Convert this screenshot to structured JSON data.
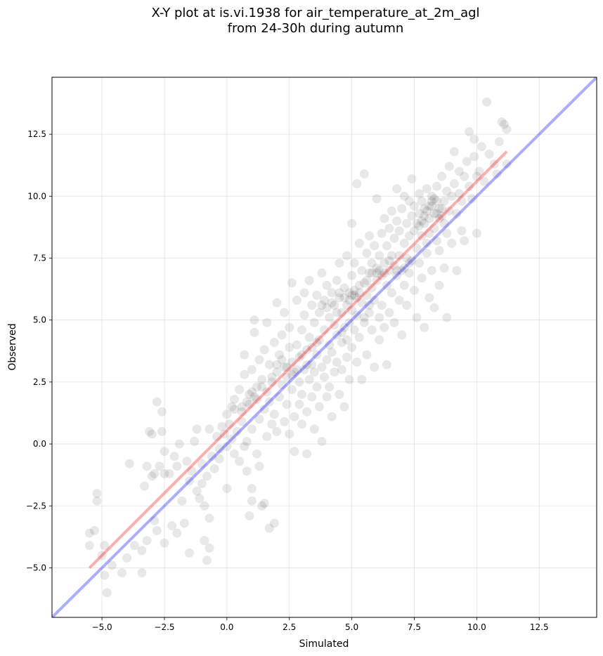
{
  "chart_data": {
    "type": "scatter",
    "title_line1": "X-Y plot at is.vi.1938 for air_temperature_at_2m_agl",
    "title_line2": "from 24-30h during autumn",
    "xlabel": "Simulated",
    "ylabel": "Observed",
    "xlim": [
      -7.0,
      14.8
    ],
    "ylim": [
      -7.0,
      14.8
    ],
    "x_ticks": [
      -5.0,
      -2.5,
      0.0,
      2.5,
      5.0,
      7.5,
      10.0,
      12.5
    ],
    "y_ticks": [
      -5.0,
      -2.5,
      0.0,
      2.5,
      5.0,
      7.5,
      10.0,
      12.5
    ],
    "x_tick_labels": [
      "−5.0",
      "−2.5",
      "0.0",
      "2.5",
      "5.0",
      "7.5",
      "10.0",
      "12.5"
    ],
    "y_tick_labels": [
      "−5.0",
      "−2.5",
      "0.0",
      "2.5",
      "5.0",
      "7.5",
      "10.0",
      "12.5"
    ],
    "grid": true,
    "colors": {
      "points": "#000000",
      "fit_line": "#ff0000",
      "identity_line": "#0000ff"
    },
    "fit_line": {
      "x": [
        -5.5,
        11.2
      ],
      "y": [
        -5.0,
        11.8
      ]
    },
    "identity_line": {
      "x": [
        -7.0,
        14.8
      ],
      "y": [
        -7.0,
        14.8
      ]
    },
    "points": [
      [
        -5.5,
        -3.6
      ],
      [
        -5.5,
        -4.1
      ],
      [
        -5.3,
        -3.5
      ],
      [
        -5.2,
        -2.0
      ],
      [
        -5.2,
        -2.3
      ],
      [
        -5.0,
        -4.5
      ],
      [
        -4.9,
        -5.3
      ],
      [
        -4.9,
        -4.1
      ],
      [
        -4.8,
        -6.0
      ],
      [
        -4.6,
        -4.9
      ],
      [
        -4.2,
        -5.2
      ],
      [
        -4.0,
        -4.6
      ],
      [
        -3.9,
        -0.8
      ],
      [
        -3.7,
        -4.1
      ],
      [
        -3.4,
        -5.2
      ],
      [
        -3.4,
        -4.3
      ],
      [
        -3.3,
        -1.7
      ],
      [
        -3.2,
        -0.9
      ],
      [
        -3.2,
        -3.9
      ],
      [
        -3.1,
        0.5
      ],
      [
        -3.0,
        -1.3
      ],
      [
        -3.0,
        0.4
      ],
      [
        -2.9,
        -1.2
      ],
      [
        -2.9,
        -3.1
      ],
      [
        -2.8,
        -3.5
      ],
      [
        -2.8,
        1.7
      ],
      [
        -2.7,
        -0.9
      ],
      [
        -2.6,
        0.5
      ],
      [
        -2.6,
        1.3
      ],
      [
        -2.5,
        -1.2
      ],
      [
        -2.5,
        -0.3
      ],
      [
        -2.5,
        -4.0
      ],
      [
        -2.3,
        -1.2
      ],
      [
        -2.2,
        -3.3
      ],
      [
        -2.1,
        -0.5
      ],
      [
        -2.0,
        -0.9
      ],
      [
        -2.0,
        -3.6
      ],
      [
        -1.9,
        0.0
      ],
      [
        -1.8,
        -2.3
      ],
      [
        -1.7,
        -3.2
      ],
      [
        -1.6,
        -0.7
      ],
      [
        -1.5,
        -1.5
      ],
      [
        -1.5,
        -4.4
      ],
      [
        -1.4,
        -1.1
      ],
      [
        -1.3,
        0.1
      ],
      [
        -1.2,
        -1.9
      ],
      [
        -1.2,
        0.6
      ],
      [
        -1.1,
        -2.2
      ],
      [
        -1.0,
        -0.8
      ],
      [
        -1.0,
        -1.6
      ],
      [
        -0.9,
        -2.5
      ],
      [
        -0.9,
        -3.9
      ],
      [
        -0.8,
        -1.3
      ],
      [
        -0.8,
        -4.7
      ],
      [
        -0.7,
        0.6
      ],
      [
        -0.7,
        -3.0
      ],
      [
        -0.7,
        -4.2
      ],
      [
        -0.6,
        -0.5
      ],
      [
        -0.5,
        -1.0
      ],
      [
        -0.4,
        0.3
      ],
      [
        -0.3,
        -0.2
      ],
      [
        -0.3,
        -0.6
      ],
      [
        -0.2,
        0.7
      ],
      [
        -0.1,
        0.4
      ],
      [
        0.0,
        -0.1
      ],
      [
        0.0,
        -1.8
      ],
      [
        0.0,
        1.2
      ],
      [
        0.1,
        0.8
      ],
      [
        0.2,
        1.5
      ],
      [
        0.2,
        0.2
      ],
      [
        0.3,
        -0.4
      ],
      [
        0.3,
        1.8
      ],
      [
        0.4,
        0.5
      ],
      [
        0.5,
        -0.7
      ],
      [
        0.5,
        2.2
      ],
      [
        0.6,
        0.9
      ],
      [
        0.6,
        1.3
      ],
      [
        0.7,
        -0.1
      ],
      [
        0.7,
        2.8
      ],
      [
        0.7,
        3.6
      ],
      [
        0.8,
        -1.1
      ],
      [
        0.8,
        0.1
      ],
      [
        0.9,
        1.6
      ],
      [
        0.9,
        2.0
      ],
      [
        0.9,
        -2.9
      ],
      [
        1.0,
        3.0
      ],
      [
        1.0,
        0.6
      ],
      [
        1.0,
        -2.3
      ],
      [
        1.0,
        -1.8
      ],
      [
        1.1,
        1.9
      ],
      [
        1.1,
        4.5
      ],
      [
        1.1,
        5.0
      ],
      [
        1.2,
        2.3
      ],
      [
        1.2,
        -0.4
      ],
      [
        1.3,
        1.0
      ],
      [
        1.3,
        3.4
      ],
      [
        1.3,
        -0.9
      ],
      [
        1.4,
        2.6
      ],
      [
        1.4,
        -2.5
      ],
      [
        1.5,
        1.4
      ],
      [
        1.5,
        3.8
      ],
      [
        1.5,
        -2.4
      ],
      [
        1.6,
        0.3
      ],
      [
        1.6,
        2.1
      ],
      [
        1.6,
        4.9
      ],
      [
        1.7,
        1.7
      ],
      [
        1.7,
        3.2
      ],
      [
        1.7,
        -3.4
      ],
      [
        1.8,
        0.8
      ],
      [
        1.8,
        2.5
      ],
      [
        1.9,
        4.1
      ],
      [
        1.9,
        1.2
      ],
      [
        1.9,
        -3.2
      ],
      [
        2.0,
        2.9
      ],
      [
        2.0,
        5.7
      ],
      [
        2.0,
        0.5
      ],
      [
        2.1,
        3.6
      ],
      [
        2.1,
        1.9
      ],
      [
        2.2,
        2.4
      ],
      [
        2.2,
        4.4
      ],
      [
        2.3,
        0.9
      ],
      [
        2.3,
        3.1
      ],
      [
        2.3,
        5.3
      ],
      [
        2.4,
        1.6
      ],
      [
        2.4,
        2.7
      ],
      [
        2.5,
        3.9
      ],
      [
        2.5,
        0.4
      ],
      [
        2.5,
        4.7
      ],
      [
        2.6,
        2.2
      ],
      [
        2.6,
        3.3
      ],
      [
        2.6,
        6.5
      ],
      [
        2.7,
        1.1
      ],
      [
        2.7,
        2.9
      ],
      [
        2.7,
        -0.3
      ],
      [
        2.8,
        4.0
      ],
      [
        2.8,
        5.8
      ],
      [
        2.9,
        2.5
      ],
      [
        2.9,
        3.5
      ],
      [
        2.9,
        1.6
      ],
      [
        3.0,
        4.6
      ],
      [
        3.0,
        0.8
      ],
      [
        3.0,
        2.0
      ],
      [
        3.1,
        3.0
      ],
      [
        3.1,
        5.2
      ],
      [
        3.1,
        6.1
      ],
      [
        3.2,
        3.8
      ],
      [
        3.2,
        1.3
      ],
      [
        3.2,
        -0.4
      ],
      [
        3.3,
        2.6
      ],
      [
        3.3,
        4.3
      ],
      [
        3.3,
        6.6
      ],
      [
        3.4,
        3.2
      ],
      [
        3.4,
        1.9
      ],
      [
        3.4,
        5.6
      ],
      [
        3.5,
        2.9
      ],
      [
        3.5,
        4.9
      ],
      [
        3.5,
        0.6
      ],
      [
        3.6,
        3.6
      ],
      [
        3.6,
        2.3
      ],
      [
        3.6,
        6.0
      ],
      [
        3.7,
        4.2
      ],
      [
        3.7,
        1.5
      ],
      [
        3.7,
        5.3
      ],
      [
        3.8,
        3.1
      ],
      [
        3.8,
        0.1
      ],
      [
        3.8,
        6.9
      ],
      [
        3.9,
        4.6
      ],
      [
        3.9,
        2.7
      ],
      [
        3.9,
        5.8
      ],
      [
        4.0,
        3.4
      ],
      [
        4.0,
        1.9
      ],
      [
        4.0,
        6.4
      ],
      [
        4.1,
        4.0
      ],
      [
        4.1,
        5.1
      ],
      [
        4.1,
        2.3
      ],
      [
        4.2,
        3.7
      ],
      [
        4.2,
        6.1
      ],
      [
        4.2,
        1.1
      ],
      [
        4.3,
        4.8
      ],
      [
        4.3,
        5.6
      ],
      [
        4.3,
        2.9
      ],
      [
        4.4,
        3.3
      ],
      [
        4.4,
        6.6
      ],
      [
        4.4,
        4.4
      ],
      [
        4.5,
        5.9
      ],
      [
        4.5,
        2.0
      ],
      [
        4.5,
        7.3
      ],
      [
        4.6,
        4.1
      ],
      [
        4.6,
        5.3
      ],
      [
        4.6,
        3.0
      ],
      [
        4.7,
        6.3
      ],
      [
        4.7,
        4.7
      ],
      [
        4.7,
        1.5
      ],
      [
        4.8,
        5.6
      ],
      [
        4.8,
        3.5
      ],
      [
        4.8,
        7.6
      ],
      [
        4.9,
        4.9
      ],
      [
        4.9,
        6.1
      ],
      [
        4.9,
        2.6
      ],
      [
        5.0,
        5.4
      ],
      [
        5.0,
        6.8
      ],
      [
        5.0,
        3.9
      ],
      [
        5.0,
        8.9
      ],
      [
        5.1,
        4.6
      ],
      [
        5.1,
        6.0
      ],
      [
        5.1,
        7.3
      ],
      [
        5.2,
        5.2
      ],
      [
        5.2,
        3.3
      ],
      [
        5.2,
        10.5
      ],
      [
        5.3,
        6.4
      ],
      [
        5.3,
        4.3
      ],
      [
        5.3,
        8.1
      ],
      [
        5.4,
        5.7
      ],
      [
        5.4,
        7.0
      ],
      [
        5.4,
        2.6
      ],
      [
        5.5,
        4.9
      ],
      [
        5.5,
        6.5
      ],
      [
        5.5,
        10.9
      ],
      [
        5.6,
        6.0
      ],
      [
        5.6,
        7.7
      ],
      [
        5.6,
        3.6
      ],
      [
        5.7,
        5.3
      ],
      [
        5.7,
        6.9
      ],
      [
        5.7,
        8.4
      ],
      [
        5.8,
        4.6
      ],
      [
        5.8,
        6.3
      ],
      [
        5.8,
        7.3
      ],
      [
        5.9,
        5.8
      ],
      [
        5.9,
        8.0
      ],
      [
        5.9,
        3.1
      ],
      [
        6.0,
        6.6
      ],
      [
        6.0,
        7.1
      ],
      [
        6.0,
        9.9
      ],
      [
        6.1,
        5.1
      ],
      [
        6.1,
        7.6
      ],
      [
        6.1,
        4.2
      ],
      [
        6.2,
        6.8
      ],
      [
        6.2,
        8.5
      ],
      [
        6.2,
        5.6
      ],
      [
        6.3,
        7.3
      ],
      [
        6.3,
        9.1
      ],
      [
        6.3,
        4.7
      ],
      [
        6.4,
        6.4
      ],
      [
        6.4,
        8.0
      ],
      [
        6.4,
        3.2
      ],
      [
        6.5,
        7.0
      ],
      [
        6.5,
        8.7
      ],
      [
        6.5,
        5.3
      ],
      [
        6.6,
        7.6
      ],
      [
        6.6,
        6.1
      ],
      [
        6.6,
        9.4
      ],
      [
        6.7,
        7.2
      ],
      [
        6.7,
        8.3
      ],
      [
        6.7,
        4.9
      ],
      [
        6.8,
        6.8
      ],
      [
        6.8,
        9.0
      ],
      [
        6.8,
        10.3
      ],
      [
        6.9,
        7.6
      ],
      [
        6.9,
        5.8
      ],
      [
        6.9,
        8.6
      ],
      [
        7.0,
        7.0
      ],
      [
        7.0,
        9.5
      ],
      [
        7.0,
        4.4
      ],
      [
        7.1,
        8.1
      ],
      [
        7.1,
        6.4
      ],
      [
        7.1,
        10.0
      ],
      [
        7.2,
        7.5
      ],
      [
        7.2,
        8.9
      ],
      [
        7.2,
        5.6
      ],
      [
        7.3,
        8.4
      ],
      [
        7.3,
        9.8
      ],
      [
        7.3,
        6.9
      ],
      [
        7.4,
        7.4
      ],
      [
        7.4,
        9.2
      ],
      [
        7.4,
        10.7
      ],
      [
        7.5,
        8.6
      ],
      [
        7.5,
        6.2
      ],
      [
        7.5,
        9.6
      ],
      [
        7.6,
        7.9
      ],
      [
        7.6,
        8.9
      ],
      [
        7.6,
        5.1
      ],
      [
        7.7,
        9.3
      ],
      [
        7.7,
        7.3
      ],
      [
        7.7,
        10.1
      ],
      [
        7.8,
        8.4
      ],
      [
        7.8,
        9.8
      ],
      [
        7.8,
        6.7
      ],
      [
        7.9,
        8.9
      ],
      [
        7.9,
        9.5
      ],
      [
        7.9,
        4.7
      ],
      [
        8.0,
        8.1
      ],
      [
        8.0,
        10.3
      ],
      [
        8.0,
        7.7
      ],
      [
        8.1,
        9.1
      ],
      [
        8.1,
        8.5
      ],
      [
        8.1,
        5.9
      ],
      [
        8.2,
        9.6
      ],
      [
        8.2,
        10.0
      ],
      [
        8.2,
        7.0
      ],
      [
        8.3,
        8.7
      ],
      [
        8.3,
        9.3
      ],
      [
        8.3,
        5.5
      ],
      [
        8.4,
        9.8
      ],
      [
        8.4,
        8.2
      ],
      [
        8.4,
        10.4
      ],
      [
        8.5,
        9.1
      ],
      [
        8.5,
        7.8
      ],
      [
        8.5,
        6.4
      ],
      [
        8.6,
        9.5
      ],
      [
        8.6,
        10.8
      ],
      [
        8.7,
        8.9
      ],
      [
        8.7,
        7.1
      ],
      [
        8.7,
        9.8
      ],
      [
        8.8,
        10.2
      ],
      [
        8.8,
        8.5
      ],
      [
        8.8,
        5.1
      ],
      [
        8.9,
        9.4
      ],
      [
        8.9,
        11.2
      ],
      [
        9.0,
        10.0
      ],
      [
        9.0,
        8.1
      ],
      [
        9.1,
        10.5
      ],
      [
        9.1,
        11.8
      ],
      [
        9.2,
        9.3
      ],
      [
        9.2,
        7.0
      ],
      [
        9.3,
        10.1
      ],
      [
        9.3,
        11.0
      ],
      [
        9.4,
        9.8
      ],
      [
        9.4,
        8.6
      ],
      [
        9.5,
        10.8
      ],
      [
        9.5,
        8.2
      ],
      [
        9.6,
        11.4
      ],
      [
        9.7,
        10.4
      ],
      [
        9.7,
        12.6
      ],
      [
        9.8,
        9.9
      ],
      [
        9.9,
        11.6
      ],
      [
        9.9,
        12.3
      ],
      [
        10.0,
        10.8
      ],
      [
        10.0,
        8.5
      ],
      [
        10.1,
        11.0
      ],
      [
        10.2,
        12.0
      ],
      [
        10.3,
        10.6
      ],
      [
        10.4,
        13.8
      ],
      [
        10.5,
        11.7
      ],
      [
        10.7,
        11.3
      ],
      [
        10.9,
        12.2
      ],
      [
        11.0,
        13.0
      ],
      [
        11.1,
        12.9
      ],
      [
        11.2,
        12.7
      ],
      [
        11.2,
        11.3
      ],
      [
        10.8,
        10.9
      ],
      [
        4.5,
        6.1
      ],
      [
        4.7,
        5.9
      ],
      [
        4.9,
        5.8
      ],
      [
        5.1,
        6.2
      ],
      [
        5.3,
        6.1
      ],
      [
        5.6,
        6.6
      ],
      [
        5.8,
        6.9
      ],
      [
        6.1,
        7.0
      ],
      [
        6.3,
        6.9
      ],
      [
        6.5,
        7.4
      ],
      [
        6.8,
        7.0
      ],
      [
        7.1,
        7.1
      ],
      [
        7.3,
        7.3
      ],
      [
        5.0,
        6.0
      ],
      [
        4.2,
        5.7
      ],
      [
        4.0,
        5.5
      ],
      [
        3.8,
        5.6
      ],
      [
        4.4,
        5.3
      ],
      [
        5.2,
        5.9
      ],
      [
        6.0,
        6.9
      ],
      [
        1.0,
        2.1
      ],
      [
        1.2,
        1.8
      ],
      [
        0.8,
        1.7
      ],
      [
        1.4,
        2.3
      ],
      [
        0.6,
        1.5
      ],
      [
        0.3,
        1.4
      ],
      [
        2.0,
        3.2
      ],
      [
        2.2,
        3.4
      ],
      [
        2.4,
        3.1
      ],
      [
        1.8,
        2.7
      ],
      [
        7.9,
        9.2
      ],
      [
        8.1,
        9.6
      ],
      [
        8.3,
        9.9
      ],
      [
        8.5,
        9.5
      ],
      [
        8.0,
        9.4
      ],
      [
        7.8,
        9.0
      ],
      [
        8.6,
        9.2
      ],
      [
        8.2,
        9.8
      ],
      [
        7.7,
        8.8
      ],
      [
        8.4,
        9.3
      ],
      [
        3.0,
        3.6
      ],
      [
        3.2,
        3.2
      ],
      [
        3.4,
        3.9
      ],
      [
        3.6,
        4.1
      ],
      [
        2.8,
        3.0
      ],
      [
        2.6,
        2.8
      ],
      [
        4.6,
        4.5
      ],
      [
        4.8,
        4.2
      ],
      [
        5.5,
        5.1
      ],
      [
        5.7,
        5.6
      ]
    ]
  }
}
